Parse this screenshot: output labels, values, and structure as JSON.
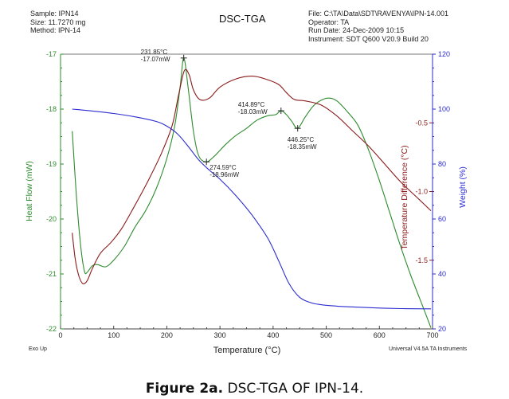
{
  "header": {
    "sample": "Sample: IPN14",
    "size": "Size:  11.7270 mg",
    "method": "Method: IPN-14",
    "file": "File: C:\\TA\\Data\\SDT\\RAVENYA\\IPN-14.001",
    "operator": "Operator: TA",
    "run_date": "Run Date: 24-Dec-2009 10:15",
    "instrument": "Instrument: SDT Q600 V20.9 Build 20"
  },
  "footer": {
    "exo": "Exo Up",
    "software": "Universal V4.5A TA Instruments"
  },
  "caption": {
    "label": "Figure 2a.",
    "text": " DSC-TGA OF IPN-14."
  },
  "chart_data": {
    "type": "line",
    "title": "DSC-TGA",
    "xlabel": "Temperature (°C)",
    "xlim": [
      0,
      700
    ],
    "xticks": [
      "0",
      "100",
      "200",
      "300",
      "400",
      "500",
      "600",
      "700"
    ],
    "axes": {
      "heat_flow": {
        "label": "Heat Flow (mW)",
        "lim": [
          -22,
          -17
        ],
        "ticks": [
          "-17",
          "-18",
          "-19",
          "-20",
          "-21",
          "-22"
        ],
        "color": "#2e8b2e"
      },
      "temp_diff": {
        "label": "Temperature Difference (°C)",
        "lim": [
          -2.0,
          0.0
        ],
        "ticks": [
          "-0.5",
          "-1.0",
          "-1.5"
        ],
        "color": "#8b1a1a"
      },
      "weight": {
        "label": "Weight (%)",
        "lim": [
          20,
          120
        ],
        "ticks": [
          "120",
          "100",
          "80",
          "60",
          "40",
          "20"
        ],
        "color": "#2b2bd1"
      }
    },
    "series": [
      {
        "name": "Heat Flow",
        "axis": "heat_flow",
        "color": "#2e8b2e",
        "x": [
          22,
          30,
          38,
          45,
          50,
          60,
          70,
          85,
          100,
          120,
          140,
          160,
          180,
          200,
          215,
          225,
          231.85,
          240,
          250,
          260,
          274.59,
          290,
          310,
          330,
          350,
          370,
          390,
          405,
          414.89,
          425,
          435,
          446.25,
          460,
          475,
          490,
          505,
          520,
          540,
          560,
          580,
          600,
          620,
          640,
          660,
          680,
          697
        ],
        "y": [
          -18.4,
          -19.6,
          -20.5,
          -20.95,
          -20.97,
          -20.85,
          -20.83,
          -20.87,
          -20.75,
          -20.5,
          -20.15,
          -19.85,
          -19.45,
          -18.9,
          -18.3,
          -17.6,
          -17.07,
          -17.6,
          -18.4,
          -18.85,
          -18.96,
          -18.85,
          -18.65,
          -18.48,
          -18.35,
          -18.2,
          -18.12,
          -18.1,
          -18.03,
          -18.1,
          -18.22,
          -18.35,
          -18.15,
          -17.95,
          -17.84,
          -17.8,
          -17.85,
          -18.05,
          -18.3,
          -18.75,
          -19.3,
          -19.9,
          -20.5,
          -21.05,
          -21.55,
          -21.98
        ]
      },
      {
        "name": "Temperature Difference",
        "axis": "temp_diff",
        "color": "#8b1a1a",
        "x": [
          22,
          28,
          35,
          42,
          50,
          60,
          75,
          95,
          115,
          140,
          165,
          190,
          210,
          222,
          233,
          242,
          250,
          262,
          280,
          300,
          330,
          360,
          385,
          410,
          425,
          440,
          460,
          490,
          520,
          550,
          580,
          610,
          640,
          670,
          697
        ],
        "y": [
          -1.3,
          -1.5,
          -1.62,
          -1.67,
          -1.65,
          -1.56,
          -1.45,
          -1.37,
          -1.27,
          -1.1,
          -0.92,
          -0.72,
          -0.52,
          -0.3,
          -0.12,
          -0.15,
          -0.26,
          -0.33,
          -0.32,
          -0.24,
          -0.18,
          -0.16,
          -0.18,
          -0.22,
          -0.28,
          -0.33,
          -0.34,
          -0.37,
          -0.45,
          -0.56,
          -0.67,
          -0.8,
          -0.93,
          -1.04,
          -1.14
        ]
      },
      {
        "name": "Weight",
        "axis": "weight",
        "color": "#2b2bd1",
        "x": [
          22,
          60,
          100,
          140,
          180,
          200,
          220,
          240,
          260,
          280,
          300,
          330,
          360,
          390,
          410,
          430,
          450,
          470,
          490,
          520,
          560,
          600,
          640,
          697
        ],
        "y": [
          100,
          99.3,
          98.4,
          97.2,
          95.5,
          93.8,
          91.0,
          86.5,
          81.5,
          77.8,
          74.5,
          68.5,
          61.5,
          53.0,
          45.0,
          36.5,
          31.5,
          29.6,
          28.8,
          28.3,
          27.9,
          27.6,
          27.4,
          27.3
        ]
      }
    ],
    "annotations": [
      {
        "series": "Heat Flow",
        "x": 231.85,
        "y": -17.07,
        "line1": "231.85°C",
        "line2": "-17.07mW",
        "pos": "top-left"
      },
      {
        "series": "Heat Flow",
        "x": 274.59,
        "y": -18.96,
        "line1": "274.59°C",
        "line2": "-18.96mW",
        "pos": "bottom-right"
      },
      {
        "series": "Heat Flow",
        "x": 414.89,
        "y": -18.03,
        "line1": "414.89°C",
        "line2": "-18.03mW",
        "pos": "top-left"
      },
      {
        "series": "Heat Flow",
        "x": 446.25,
        "y": -18.35,
        "line1": "446.25°C",
        "line2": "-18.35mW",
        "pos": "bottom"
      }
    ]
  }
}
